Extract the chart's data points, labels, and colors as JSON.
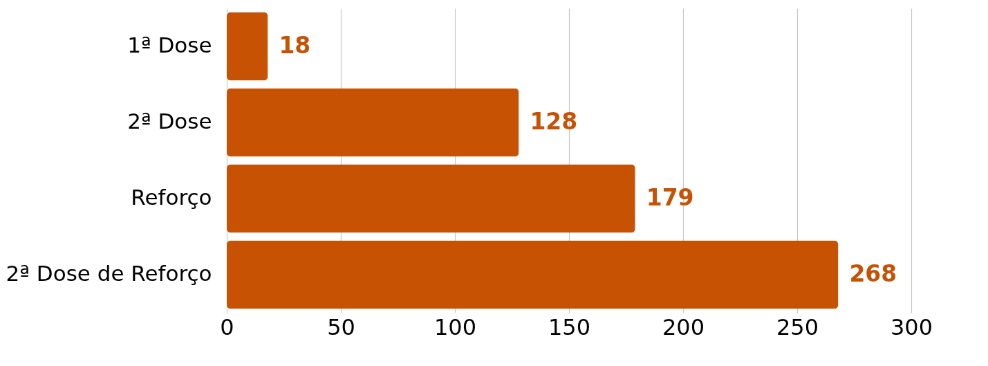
{
  "chart_data": {
    "type": "bar",
    "orientation": "horizontal",
    "categories": [
      "1ª Dose",
      "2ª Dose",
      "Reforço",
      "2ª Dose de Reforço"
    ],
    "values": [
      18,
      128,
      179,
      268
    ],
    "color": "#c75204",
    "xlim": [
      0,
      300
    ],
    "xticks": [
      0,
      50,
      100,
      150,
      200,
      250,
      300
    ],
    "grid": "x",
    "data_labels": true
  }
}
